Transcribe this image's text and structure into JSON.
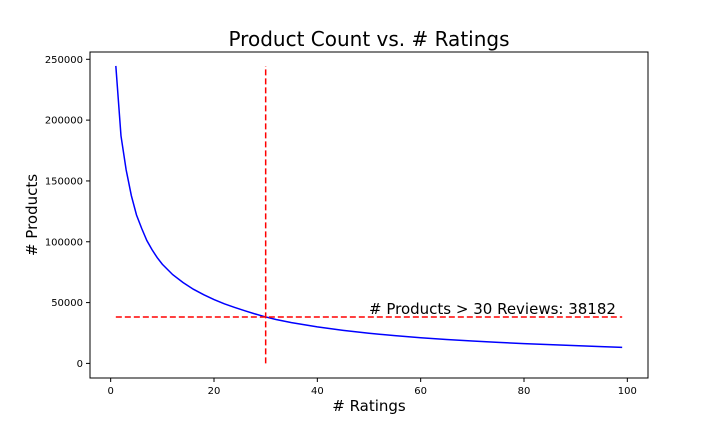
{
  "chart_data": {
    "type": "line",
    "title": "Product Count vs. # Ratings",
    "xlabel": "# Ratings",
    "ylabel": "# Products",
    "xlim": [
      -4,
      104
    ],
    "ylim": [
      -12000,
      256000
    ],
    "xticks": [
      0,
      20,
      40,
      60,
      80,
      100
    ],
    "yticks": [
      0,
      50000,
      100000,
      150000,
      200000,
      250000
    ],
    "grid": false,
    "series": [
      {
        "color": "#0000ff",
        "x": [
          1,
          2,
          3,
          4,
          5,
          6,
          7,
          8,
          9,
          10,
          12,
          14,
          16,
          18,
          20,
          22,
          24,
          26,
          28,
          30,
          32,
          35,
          40,
          45,
          50,
          55,
          60,
          65,
          70,
          75,
          80,
          85,
          90,
          95,
          99
        ],
        "y": [
          244500,
          187000,
          159000,
          138000,
          122000,
          111000,
          101000,
          93500,
          87000,
          81500,
          73000,
          66500,
          61000,
          56500,
          52500,
          49000,
          46000,
          43200,
          40600,
          38182,
          36100,
          33500,
          30000,
          27200,
          24800,
          22800,
          21100,
          19700,
          18400,
          17300,
          16300,
          15400,
          14600,
          13800,
          13200
        ]
      }
    ],
    "reference_lines": [
      {
        "orientation": "vertical",
        "x": 30,
        "y_range": [
          0,
          244500
        ],
        "color": "#ff0000",
        "style": "dashed"
      },
      {
        "orientation": "horizontal",
        "y": 38182,
        "x_range": [
          1,
          99
        ],
        "color": "#ff0000",
        "style": "dashed"
      }
    ],
    "annotations": [
      {
        "text": "# Products > 30 Reviews: 38182",
        "x": 50,
        "y": 38182
      }
    ]
  }
}
